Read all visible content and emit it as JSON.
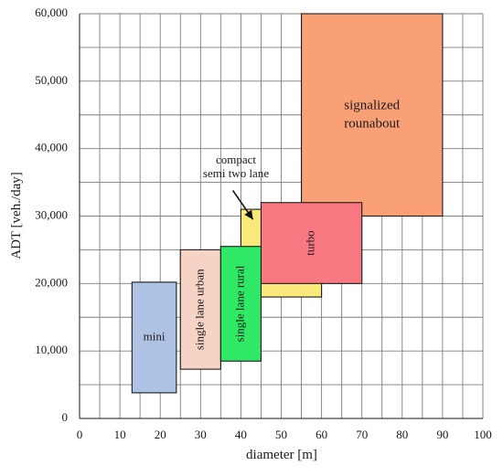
{
  "chart_data": {
    "type": "area",
    "xlabel": "diameter [m]",
    "ylabel": "ADT [veh./day]",
    "xlim": [
      0,
      100
    ],
    "ylim": [
      0,
      60000
    ],
    "x_ticks": [
      "0",
      "10",
      "20",
      "30",
      "40",
      "50",
      "60",
      "70",
      "80",
      "90",
      "100"
    ],
    "y_ticks": [
      "0",
      "10,000",
      "20,000",
      "30,000",
      "40,000",
      "50,000",
      "60,000"
    ],
    "grid": true,
    "regions": [
      {
        "id": "signalized",
        "label": "signalized\nrounabout",
        "x0": 55,
        "x1": 90,
        "y0": 30000,
        "y1": 60000,
        "color": "#f9a077",
        "label_rotated": false
      },
      {
        "id": "compact",
        "label": "",
        "x0": 40,
        "x1": 60,
        "y0": 18000,
        "y1": 31000,
        "color": "#fbe87a",
        "label_rotated": false
      },
      {
        "id": "turbo",
        "label": "turbo",
        "x0": 45,
        "x1": 70,
        "y0": 20000,
        "y1": 32000,
        "color": "#f87882",
        "label_rotated": true
      },
      {
        "id": "mini",
        "label": "mini",
        "x0": 13,
        "x1": 24,
        "y0": 3800,
        "y1": 20200,
        "color": "#aec3e4",
        "label_rotated": false
      },
      {
        "id": "single-urban",
        "label": "single lane urban",
        "x0": 25,
        "x1": 35,
        "y0": 7300,
        "y1": 25000,
        "color": "#f7d3c5",
        "label_rotated": true
      },
      {
        "id": "single-rural",
        "label": "single lane rural",
        "x0": 35,
        "x1": 45,
        "y0": 8500,
        "y1": 25500,
        "color": "#2fe866",
        "label_rotated": true
      }
    ],
    "annotation": {
      "text": "compact\nsemi two lane",
      "arrow_from": [
        38,
        33800
      ],
      "arrow_to": [
        43,
        29500
      ]
    }
  }
}
